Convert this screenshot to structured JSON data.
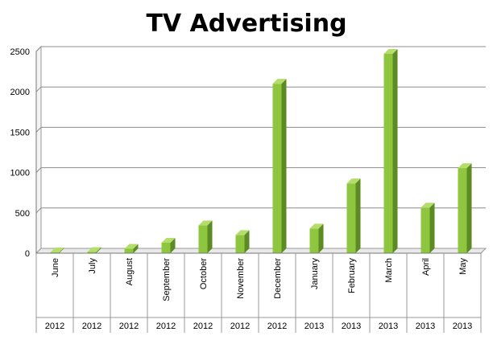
{
  "chart_data": {
    "type": "bar",
    "title": "TV Advertising",
    "categories": [
      "June",
      "July",
      "August",
      "September",
      "October",
      "November",
      "December",
      "January",
      "February",
      "March",
      "April",
      "May"
    ],
    "years": [
      "2012",
      "2012",
      "2012",
      "2012",
      "2012",
      "2012",
      "2012",
      "2013",
      "2013",
      "2013",
      "2013",
      "2013"
    ],
    "values": [
      10,
      15,
      55,
      130,
      345,
      225,
      2100,
      305,
      865,
      2470,
      565,
      1055
    ],
    "ylim": [
      0,
      2500
    ],
    "yticks": [
      "0",
      "500",
      "1000",
      "1500",
      "2000",
      "2500"
    ],
    "grid": true,
    "legend": "none",
    "bar_color": "#8ec63f",
    "bar_side_color": "#5c8a23",
    "bar_top_color": "#b5dd6c"
  }
}
